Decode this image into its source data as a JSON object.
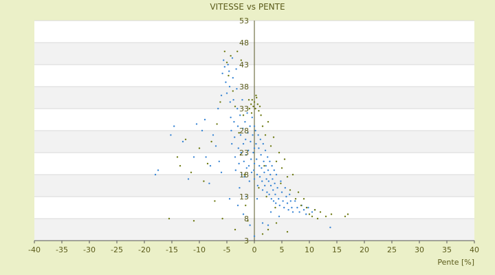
{
  "chart_data": {
    "type": "scatter",
    "title": "VITESSE vs PENTE",
    "xlabel": "Pente [%]",
    "ylabel": "",
    "xlim": [
      -40,
      40
    ],
    "ylim": [
      3,
      53
    ],
    "x_ticks": [
      -40,
      -35,
      -30,
      -25,
      -20,
      -15,
      -10,
      -5,
      0,
      5,
      10,
      15,
      20,
      25,
      30,
      35,
      40
    ],
    "y_ticks": [
      3,
      8,
      13,
      18,
      23,
      28,
      33,
      38,
      43,
      48,
      53
    ],
    "grid": "horizontal bands",
    "legend": "none",
    "series": [
      {
        "color": "#3a86d4",
        "points": [
          [
            -18.0,
            18.0
          ],
          [
            -17.5,
            19.0
          ],
          [
            -15.2,
            27.0
          ],
          [
            -14.6,
            29.0
          ],
          [
            -13.0,
            25.5
          ],
          [
            -12.0,
            17.0
          ],
          [
            -10.5,
            29.5
          ],
          [
            -9.5,
            28.0
          ],
          [
            -9.0,
            30.5
          ],
          [
            -8.8,
            22.0
          ],
          [
            -8.2,
            16.0
          ],
          [
            -7.5,
            27.0
          ],
          [
            -7.0,
            24.5
          ],
          [
            -6.6,
            33.0
          ],
          [
            -6.4,
            21.0
          ],
          [
            -6.0,
            36.0
          ],
          [
            -5.8,
            41.0
          ],
          [
            -5.6,
            44.0
          ],
          [
            -5.4,
            42.5
          ],
          [
            -5.2,
            39.0
          ],
          [
            -5.0,
            36.5
          ],
          [
            -4.8,
            43.0
          ],
          [
            -4.6,
            41.5
          ],
          [
            -4.5,
            38.0
          ],
          [
            -4.4,
            34.5
          ],
          [
            -4.3,
            31.0
          ],
          [
            -4.2,
            28.0
          ],
          [
            -4.1,
            25.0
          ],
          [
            -4.0,
            44.5
          ],
          [
            -3.9,
            40.0
          ],
          [
            -3.8,
            35.0
          ],
          [
            -3.7,
            30.0
          ],
          [
            -3.6,
            26.5
          ],
          [
            -3.5,
            22.0
          ],
          [
            -3.4,
            19.0
          ],
          [
            -3.3,
            42.0
          ],
          [
            -3.2,
            37.5
          ],
          [
            -3.1,
            33.0
          ],
          [
            -3.0,
            29.0
          ],
          [
            -2.9,
            24.0
          ],
          [
            -2.8,
            20.5
          ],
          [
            -2.7,
            15.0
          ],
          [
            -2.6,
            31.5
          ],
          [
            -2.5,
            27.0
          ],
          [
            -2.4,
            23.0
          ],
          [
            -2.3,
            18.0
          ],
          [
            -2.2,
            35.0
          ],
          [
            -2.1,
            28.5
          ],
          [
            -2.0,
            25.0
          ],
          [
            -1.9,
            21.0
          ],
          [
            -1.8,
            17.5
          ],
          [
            -1.7,
            30.0
          ],
          [
            -1.6,
            26.0
          ],
          [
            -1.5,
            22.5
          ],
          [
            -1.4,
            19.5
          ],
          [
            -1.3,
            32.0
          ],
          [
            -1.2,
            27.5
          ],
          [
            -1.1,
            23.5
          ],
          [
            -1.0,
            20.0
          ],
          [
            -0.9,
            16.5
          ],
          [
            -0.8,
            29.0
          ],
          [
            -0.7,
            25.5
          ],
          [
            -0.6,
            21.5
          ],
          [
            -0.5,
            18.5
          ],
          [
            -0.4,
            31.0
          ],
          [
            -0.3,
            27.0
          ],
          [
            -0.2,
            23.0
          ],
          [
            -0.1,
            19.0
          ],
          [
            0.0,
            29.0
          ],
          [
            0.0,
            24.0
          ],
          [
            0.0,
            20.5
          ],
          [
            0.0,
            17.0
          ],
          [
            0.0,
            4.0
          ],
          [
            0.2,
            28.0
          ],
          [
            0.3,
            25.0
          ],
          [
            0.4,
            21.5
          ],
          [
            0.5,
            18.0
          ],
          [
            0.6,
            15.5
          ],
          [
            0.7,
            27.0
          ],
          [
            0.8,
            24.0
          ],
          [
            0.9,
            20.0
          ],
          [
            1.0,
            17.5
          ],
          [
            1.1,
            26.0
          ],
          [
            1.2,
            22.5
          ],
          [
            1.3,
            19.5
          ],
          [
            1.4,
            16.5
          ],
          [
            1.5,
            14.5
          ],
          [
            1.6,
            25.0
          ],
          [
            1.7,
            21.0
          ],
          [
            1.8,
            18.5
          ],
          [
            1.9,
            15.5
          ],
          [
            2.0,
            23.5
          ],
          [
            2.1,
            20.0
          ],
          [
            2.2,
            17.0
          ],
          [
            2.3,
            14.0
          ],
          [
            2.4,
            22.0
          ],
          [
            2.5,
            19.0
          ],
          [
            2.6,
            16.5
          ],
          [
            2.7,
            13.5
          ],
          [
            2.8,
            21.0
          ],
          [
            2.9,
            18.0
          ],
          [
            3.0,
            15.5
          ],
          [
            3.1,
            12.5
          ],
          [
            3.2,
            20.0
          ],
          [
            3.3,
            17.0
          ],
          [
            3.4,
            14.5
          ],
          [
            3.5,
            12.0
          ],
          [
            3.6,
            19.0
          ],
          [
            3.7,
            16.0
          ],
          [
            3.8,
            13.5
          ],
          [
            3.9,
            11.5
          ],
          [
            4.0,
            18.0
          ],
          [
            4.2,
            15.0
          ],
          [
            4.4,
            12.5
          ],
          [
            4.6,
            11.0
          ],
          [
            4.8,
            16.5
          ],
          [
            5.0,
            14.0
          ],
          [
            5.2,
            12.0
          ],
          [
            5.4,
            10.5
          ],
          [
            5.6,
            15.0
          ],
          [
            5.8,
            13.0
          ],
          [
            6.0,
            11.5
          ],
          [
            6.2,
            10.0
          ],
          [
            6.4,
            13.5
          ],
          [
            6.6,
            12.0
          ],
          [
            6.8,
            10.5
          ],
          [
            7.0,
            9.5
          ],
          [
            7.4,
            12.0
          ],
          [
            7.8,
            10.5
          ],
          [
            8.2,
            9.5
          ],
          [
            8.6,
            11.0
          ],
          [
            9.0,
            10.0
          ],
          [
            9.4,
            9.0
          ],
          [
            9.8,
            10.5
          ],
          [
            10.5,
            9.5
          ],
          [
            11.0,
            10.0
          ],
          [
            13.8,
            6.0
          ],
          [
            2.5,
            6.5
          ],
          [
            -2.0,
            9.0
          ],
          [
            -0.8,
            6.5
          ],
          [
            1.5,
            7.0
          ],
          [
            4.5,
            8.5
          ],
          [
            -3.0,
            11.0
          ],
          [
            0.5,
            12.5
          ],
          [
            -1.5,
            13.0
          ],
          [
            3.0,
            9.5
          ],
          [
            -4.5,
            12.5
          ],
          [
            -6.0,
            18.5
          ],
          [
            -8.0,
            20.0
          ],
          [
            -11.0,
            22.0
          ]
        ]
      },
      {
        "color": "#6e7a14",
        "points": [
          [
            -15.5,
            8.0
          ],
          [
            -11.0,
            7.5
          ],
          [
            -14.0,
            22.0
          ],
          [
            -13.5,
            20.0
          ],
          [
            -12.5,
            26.0
          ],
          [
            -11.5,
            18.5
          ],
          [
            -10.0,
            24.0
          ],
          [
            -9.2,
            16.5
          ],
          [
            -8.5,
            20.5
          ],
          [
            -7.8,
            25.5
          ],
          [
            -7.2,
            12.0
          ],
          [
            -6.8,
            29.5
          ],
          [
            -6.2,
            34.5
          ],
          [
            -5.8,
            8.0
          ],
          [
            -5.4,
            46.0
          ],
          [
            -5.0,
            43.5
          ],
          [
            -4.7,
            40.5
          ],
          [
            -4.3,
            45.0
          ],
          [
            -3.9,
            37.0
          ],
          [
            -3.5,
            33.5
          ],
          [
            -3.1,
            46.0
          ],
          [
            -2.8,
            27.5
          ],
          [
            -2.4,
            44.0
          ],
          [
            -2.0,
            31.5
          ],
          [
            -1.6,
            11.0
          ],
          [
            -1.2,
            7.5
          ],
          [
            -0.9,
            33.0
          ],
          [
            -0.6,
            34.0
          ],
          [
            -0.4,
            35.0
          ],
          [
            -0.2,
            33.5
          ],
          [
            0.0,
            34.5
          ],
          [
            0.2,
            33.0
          ],
          [
            0.4,
            35.5
          ],
          [
            0.6,
            34.0
          ],
          [
            0.8,
            32.5
          ],
          [
            1.0,
            33.5
          ],
          [
            -1.0,
            35.0
          ],
          [
            -0.5,
            32.0
          ],
          [
            0.3,
            36.0
          ],
          [
            1.2,
            31.5
          ],
          [
            1.5,
            29.0
          ],
          [
            2.0,
            27.0
          ],
          [
            2.5,
            30.0
          ],
          [
            3.0,
            24.5
          ],
          [
            3.5,
            26.5
          ],
          [
            4.0,
            21.0
          ],
          [
            4.5,
            23.0
          ],
          [
            5.0,
            19.5
          ],
          [
            5.5,
            21.5
          ],
          [
            6.0,
            17.5
          ],
          [
            6.5,
            14.5
          ],
          [
            7.0,
            18.0
          ],
          [
            7.5,
            12.5
          ],
          [
            8.0,
            14.0
          ],
          [
            8.5,
            11.0
          ],
          [
            9.0,
            12.5
          ],
          [
            9.5,
            10.5
          ],
          [
            10.0,
            9.0
          ],
          [
            10.5,
            8.5
          ],
          [
            11.0,
            10.0
          ],
          [
            11.5,
            8.0
          ],
          [
            12.0,
            9.5
          ],
          [
            13.0,
            8.5
          ],
          [
            14.0,
            9.0
          ],
          [
            16.5,
            8.5
          ],
          [
            17.0,
            9.0
          ],
          [
            1.5,
            4.5
          ],
          [
            2.5,
            5.5
          ],
          [
            4.0,
            7.0
          ],
          [
            6.0,
            5.0
          ],
          [
            -3.5,
            5.5
          ],
          [
            -1.8,
            18.0
          ],
          [
            0.8,
            15.0
          ],
          [
            2.2,
            13.0
          ],
          [
            3.8,
            10.5
          ],
          [
            -2.5,
            22.5
          ],
          [
            1.8,
            20.0
          ],
          [
            4.8,
            16.0
          ]
        ]
      }
    ]
  }
}
